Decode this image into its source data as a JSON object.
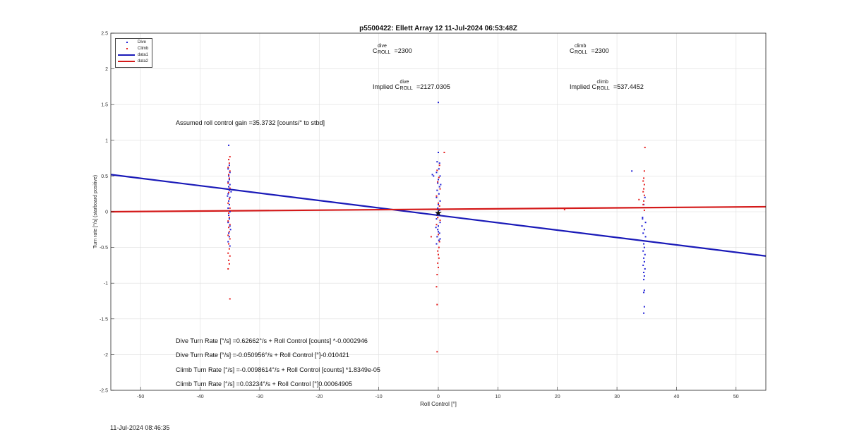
{
  "chart_data": {
    "type": "scatter",
    "title": "p5500422: Ellett Array 12 11-Jul-2024 06:53:48Z",
    "xlabel": "Roll Control [°]",
    "ylabel": "Turn rate [°/s] (starboard positive)",
    "xlim": [
      -55,
      55
    ],
    "ylim": [
      -2.5,
      2.5
    ],
    "xticks": [
      -50,
      -40,
      -30,
      -20,
      -10,
      0,
      10,
      20,
      30,
      40,
      50
    ],
    "yticks": [
      -2.5,
      -2,
      -1.5,
      -1,
      -0.5,
      0,
      0.5,
      1,
      1.5,
      2,
      2.5
    ],
    "grid": true,
    "legend_position": "top-left",
    "series": [
      {
        "name": "Dive",
        "type": "scatter",
        "color": "#1f1fd6",
        "points": [
          [
            -35.2,
            0.93
          ],
          [
            -35.1,
            0.65
          ],
          [
            -35.3,
            0.6
          ],
          [
            -35.0,
            0.55
          ],
          [
            -35.2,
            0.5
          ],
          [
            -35.1,
            0.45
          ],
          [
            -35.3,
            0.42
          ],
          [
            -35.0,
            0.38
          ],
          [
            -35.2,
            0.35
          ],
          [
            -35.1,
            0.3
          ],
          [
            -35.3,
            0.25
          ],
          [
            -35.0,
            0.2
          ],
          [
            -35.2,
            0.15
          ],
          [
            -35.1,
            0.1
          ],
          [
            -35.3,
            0.05
          ],
          [
            -35.0,
            0.0
          ],
          [
            -35.2,
            -0.05
          ],
          [
            -35.1,
            -0.1
          ],
          [
            -35.3,
            -0.15
          ],
          [
            -35.0,
            -0.2
          ],
          [
            -35.2,
            -0.3
          ],
          [
            -35.1,
            -0.35
          ],
          [
            -35.3,
            -0.42
          ],
          [
            -35.0,
            -0.48
          ],
          [
            -34.8,
            0.28
          ],
          [
            -35.4,
            0.22
          ],
          [
            -34.9,
            -0.25
          ],
          [
            0.0,
            1.53
          ],
          [
            0.0,
            0.83
          ],
          [
            -0.2,
            0.7
          ],
          [
            0.2,
            0.68
          ],
          [
            0.1,
            0.6
          ],
          [
            -0.3,
            0.55
          ],
          [
            0.3,
            0.5
          ],
          [
            -1.0,
            0.52
          ],
          [
            -0.8,
            0.5
          ],
          [
            0.0,
            0.45
          ],
          [
            -0.1,
            0.4
          ],
          [
            0.2,
            0.35
          ],
          [
            -0.2,
            0.3
          ],
          [
            0.1,
            0.25
          ],
          [
            -0.3,
            0.2
          ],
          [
            0.3,
            0.15
          ],
          [
            0.0,
            0.1
          ],
          [
            -0.1,
            0.05
          ],
          [
            0.2,
            0.02
          ],
          [
            -0.2,
            -0.02
          ],
          [
            0.1,
            -0.05
          ],
          [
            -0.3,
            -0.1
          ],
          [
            0.3,
            -0.15
          ],
          [
            0.0,
            -0.2
          ],
          [
            -0.1,
            -0.25
          ],
          [
            0.2,
            -0.3
          ],
          [
            -0.2,
            -0.35
          ],
          [
            0.1,
            -0.4
          ],
          [
            -0.3,
            -0.45
          ],
          [
            0.3,
            -0.38
          ],
          [
            0.0,
            -0.28
          ],
          [
            -0.4,
            -0.22
          ],
          [
            0.4,
            0.38
          ],
          [
            32.5,
            0.57
          ],
          [
            34.5,
            0.1
          ],
          [
            34.3,
            -0.1
          ],
          [
            34.8,
            -0.15
          ],
          [
            34.2,
            -0.2
          ],
          [
            34.6,
            -0.25
          ],
          [
            34.4,
            -0.3
          ],
          [
            34.8,
            -0.35
          ],
          [
            34.5,
            -0.45
          ],
          [
            34.6,
            -0.5
          ],
          [
            34.4,
            -0.55
          ],
          [
            34.7,
            -0.6
          ],
          [
            34.5,
            -0.65
          ],
          [
            34.6,
            -0.7
          ],
          [
            34.4,
            -0.75
          ],
          [
            34.7,
            -0.8
          ],
          [
            34.5,
            -0.85
          ],
          [
            34.6,
            -0.9
          ],
          [
            34.5,
            -0.95
          ],
          [
            34.6,
            -1.1
          ],
          [
            34.5,
            -1.13
          ],
          [
            34.6,
            -1.33
          ],
          [
            34.5,
            -1.42
          ],
          [
            34.3,
            -0.08
          ],
          [
            34.7,
            0.2
          ]
        ]
      },
      {
        "name": "Climb",
        "type": "scatter",
        "color": "#e61e1e",
        "points": [
          [
            -35.0,
            0.77
          ],
          [
            -35.2,
            0.73
          ],
          [
            -35.1,
            0.68
          ],
          [
            -35.3,
            0.62
          ],
          [
            -35.0,
            0.57
          ],
          [
            -35.2,
            0.52
          ],
          [
            -35.1,
            0.47
          ],
          [
            -35.3,
            0.4
          ],
          [
            -35.0,
            0.33
          ],
          [
            -35.2,
            0.27
          ],
          [
            -35.1,
            0.18
          ],
          [
            -35.3,
            0.12
          ],
          [
            -35.0,
            0.05
          ],
          [
            -35.2,
            -0.02
          ],
          [
            -35.1,
            -0.08
          ],
          [
            -35.3,
            -0.13
          ],
          [
            -35.0,
            -0.18
          ],
          [
            -35.2,
            -0.22
          ],
          [
            -35.1,
            -0.28
          ],
          [
            -35.3,
            -0.33
          ],
          [
            -35.0,
            -0.38
          ],
          [
            -35.2,
            -0.45
          ],
          [
            -35.1,
            -0.52
          ],
          [
            -35.3,
            -0.58
          ],
          [
            -35.0,
            -0.62
          ],
          [
            -35.2,
            -0.68
          ],
          [
            -35.1,
            -0.73
          ],
          [
            -35.3,
            -0.8
          ],
          [
            -35.0,
            -1.22
          ],
          [
            1.0,
            0.83
          ],
          [
            0.2,
            0.65
          ],
          [
            -0.2,
            0.58
          ],
          [
            0.1,
            0.48
          ],
          [
            -0.1,
            0.42
          ],
          [
            0.3,
            0.32
          ],
          [
            -0.3,
            0.22
          ],
          [
            0.0,
            0.12
          ],
          [
            0.2,
            0.08
          ],
          [
            -0.2,
            0.03
          ],
          [
            0.1,
            -0.03
          ],
          [
            -0.1,
            -0.08
          ],
          [
            0.3,
            -0.12
          ],
          [
            -0.3,
            -0.18
          ],
          [
            0.0,
            -0.32
          ],
          [
            0.2,
            -0.42
          ],
          [
            -1.2,
            -0.35
          ],
          [
            0.1,
            -0.5
          ],
          [
            -0.1,
            -0.55
          ],
          [
            0.0,
            -0.6
          ],
          [
            0.1,
            -0.65
          ],
          [
            -0.1,
            -0.72
          ],
          [
            0.0,
            -0.78
          ],
          [
            -0.2,
            -0.88
          ],
          [
            -0.3,
            -1.05
          ],
          [
            -0.2,
            -1.3
          ],
          [
            -0.2,
            -1.96
          ],
          [
            34.7,
            0.9
          ],
          [
            34.6,
            0.57
          ],
          [
            34.5,
            0.47
          ],
          [
            34.4,
            0.43
          ],
          [
            34.6,
            0.38
          ],
          [
            34.5,
            0.32
          ],
          [
            34.4,
            0.28
          ],
          [
            34.6,
            0.23
          ],
          [
            34.5,
            0.15
          ],
          [
            33.7,
            0.17
          ],
          [
            34.4,
            0.1
          ],
          [
            34.6,
            0.02
          ],
          [
            21.2,
            0.03
          ]
        ]
      },
      {
        "name": "data1",
        "type": "line",
        "color": "#1a1ab8",
        "x": [
          -55,
          55
        ],
        "y": [
          0.52,
          -0.62
        ]
      },
      {
        "name": "data2",
        "type": "line",
        "color": "#d41a1a",
        "x": [
          -55,
          55
        ],
        "y": [
          0.0,
          0.07
        ]
      }
    ],
    "marker_star": [
      0,
      -0.01
    ]
  },
  "annotations": {
    "c_dive_base": "C",
    "c_dive_sup": "dive",
    "c_dive_sub": "ROLL",
    "c_dive_value": "=2300",
    "c_climb_base": "C",
    "c_climb_sup": "climb",
    "c_climb_sub": "ROLL",
    "c_climb_value": "=2300",
    "implied_prefix": "Implied",
    "implied_dive_base": "C",
    "implied_dive_sup": "dive",
    "implied_dive_sub": "ROLL",
    "implied_dive_value": "=2127.0305",
    "implied_climb_base": "C",
    "implied_climb_sup": "climb",
    "implied_climb_sub": "ROLL",
    "implied_climb_value": "=537.4452",
    "gain": "Assumed roll control gain =35.3732 [counts/° to stbd]",
    "eq1": "Dive Turn Rate [°/s] =0.62662°/s + Roll Control [counts] *-0.0002946",
    "eq2": "Dive Turn Rate [°/s] =-0.050956°/s + Roll Control [°]-0.010421",
    "eq3": "Climb Turn Rate [°/s] =-0.0098614°/s + Roll Control [counts] *1.8349e-05",
    "eq4": "Climb Turn Rate [°/s] =0.03234°/s + Roll Control [°]0.00064905"
  },
  "legend": {
    "items": [
      {
        "label": "Dive",
        "color": "#1f1fd6",
        "kind": "dot"
      },
      {
        "label": "Climb",
        "color": "#e61e1e",
        "kind": "dot"
      },
      {
        "label": "data1",
        "color": "#1a1ab8",
        "kind": "line"
      },
      {
        "label": "data2",
        "color": "#d41a1a",
        "kind": "line"
      }
    ]
  },
  "timestamp": "11-Jul-2024 08:46:35"
}
